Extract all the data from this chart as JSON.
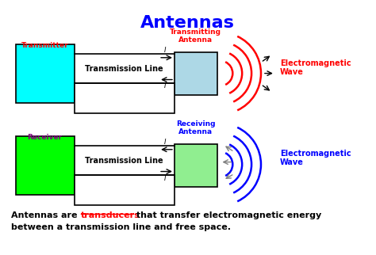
{
  "title": "Antennas",
  "title_color": "#0000FF",
  "bg_color": "#FFFFFF",
  "transmitter_box_color": "#00FFFF",
  "transmitter_label_color": "#FF0000",
  "transmitter_label": "Transmitter",
  "transmitting_antenna_color": "#ADD8E6",
  "transmitting_antenna_label_color": "#FF0000",
  "transmitting_antenna_label": "Transmitting\nAntenna",
  "tx_wave_color": "#FF0000",
  "tx_em_label": "Electromagnetic\nWave",
  "tx_em_label_color": "#FF0000",
  "tx_line_label": "Transmission Line",
  "receiver_box_color": "#00FF00",
  "receiver_label_color": "#800080",
  "receiver_label": "Receiver",
  "receiving_antenna_color": "#90EE90",
  "receiving_antenna_label_color": "#0000FF",
  "receiving_antenna_label": "Receiving\nAntenna",
  "rx_wave_color": "#0000FF",
  "rx_em_label": "Electromagnetic\nWave",
  "rx_em_label_color": "#0000FF",
  "rx_line_label": "Transmission Line",
  "link_color": "#FF0000"
}
